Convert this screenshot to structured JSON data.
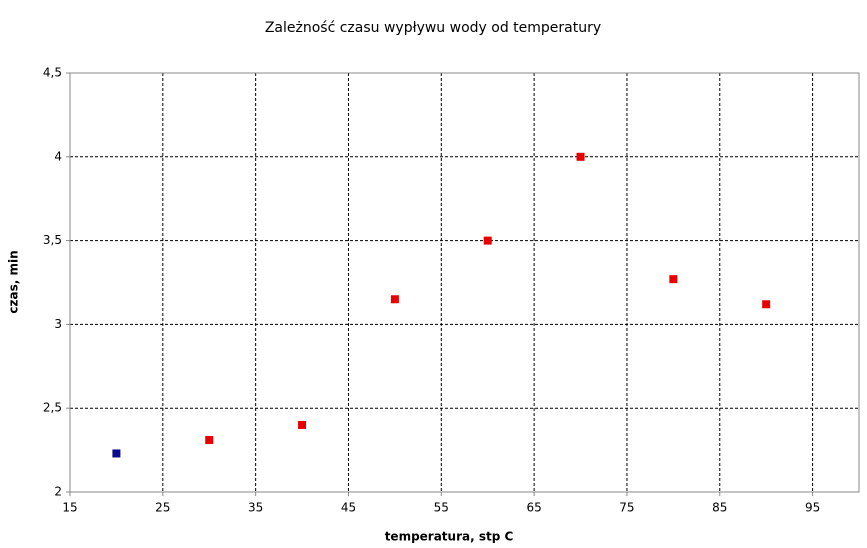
{
  "chart_data": {
    "type": "scatter",
    "title": "Zależność czasu wypływu wody od temperatury",
    "xlabel": "temperatura, stp C",
    "ylabel": "czas, min",
    "x": [
      20,
      30,
      40,
      50,
      60,
      70,
      80,
      90
    ],
    "values": [
      2.23,
      2.31,
      2.4,
      3.15,
      3.5,
      4,
      3.27,
      3.12
    ],
    "colors": [
      "#0a0a8c",
      "#e60000",
      "#e60000",
      "#e60000",
      "#e60000",
      "#e60000",
      "#e60000",
      "#e60000"
    ],
    "xlim": [
      15,
      100
    ],
    "ylim": [
      2,
      4.5
    ],
    "xticks": [
      15,
      25,
      35,
      45,
      55,
      65,
      75,
      85,
      95
    ],
    "yticks": [
      2,
      {
        "value": 2.5,
        "label": "2,5"
      },
      3,
      {
        "value": 3.5,
        "label": "3,5"
      },
      4,
      {
        "value": 4.5,
        "label": "4,5"
      }
    ],
    "grid": true
  }
}
